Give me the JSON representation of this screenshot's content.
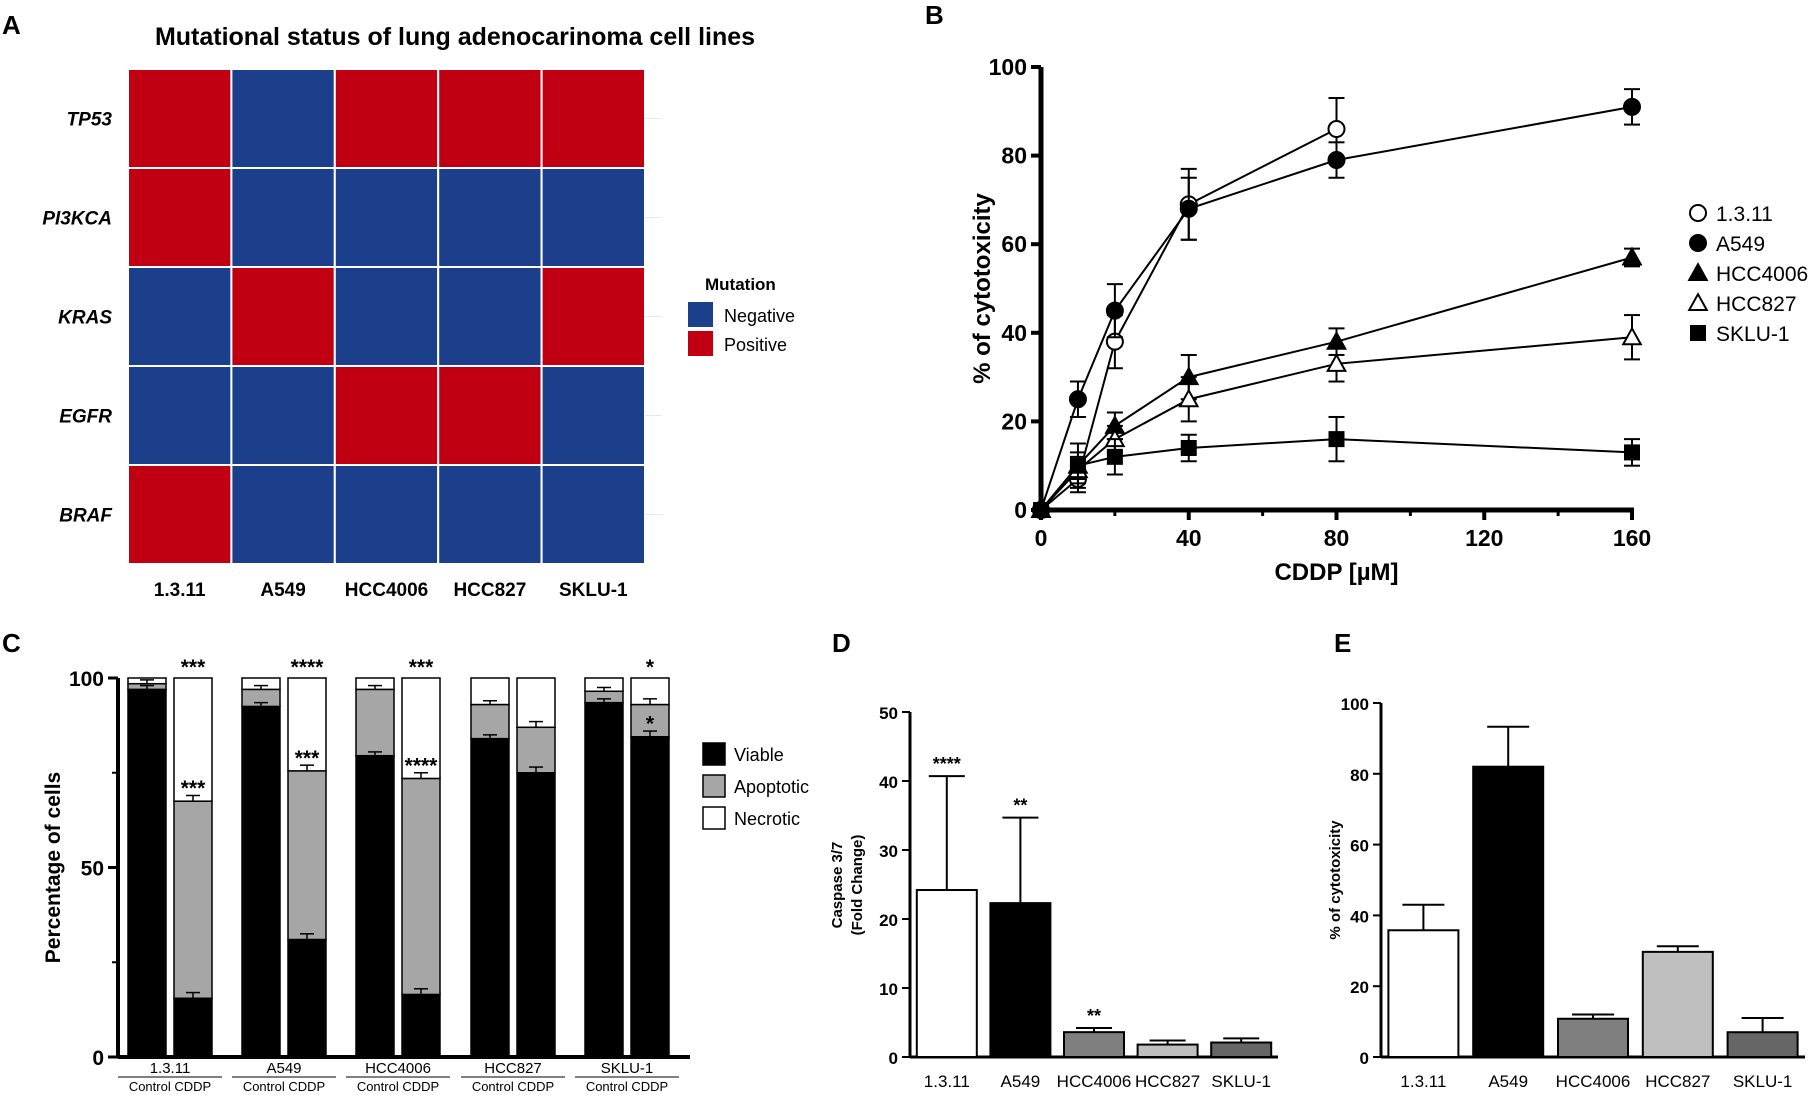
{
  "panel_labels": {
    "A": "A",
    "B": "B",
    "C": "C",
    "D": "D",
    "E": "E"
  },
  "chart_data": [
    {
      "id": "A",
      "type": "heatmap",
      "title": "Mutational status of lung adenocarinoma cell lines",
      "columns": [
        "1.3.11",
        "A549",
        "HCC4006",
        "HCC827",
        "SKLU-1"
      ],
      "rows": [
        "TP53",
        "PI3KCA",
        "KRAS",
        "EGFR",
        "BRAF"
      ],
      "values": [
        [
          1,
          0,
          1,
          1,
          1
        ],
        [
          1,
          0,
          0,
          0,
          0
        ],
        [
          0,
          1,
          0,
          0,
          1
        ],
        [
          0,
          0,
          1,
          1,
          0
        ],
        [
          1,
          0,
          0,
          0,
          0
        ]
      ],
      "legend_title": "Mutation",
      "legend": [
        {
          "label": "Negative",
          "color": "#1c3f8c"
        },
        {
          "label": "Positive",
          "color": "#c00012"
        }
      ]
    },
    {
      "id": "B",
      "type": "line",
      "xlabel": "CDDP  [µM]",
      "ylabel": "% of cytotoxicity",
      "xlim": [
        0,
        160
      ],
      "ylim": [
        0,
        100
      ],
      "xticks": [
        0,
        40,
        80,
        120,
        160
      ],
      "yticks": [
        0,
        20,
        40,
        60,
        80,
        100
      ],
      "series": [
        {
          "name": "1.3.11",
          "marker": "circle-open",
          "x": [
            0,
            10,
            20,
            40,
            80
          ],
          "y": [
            0,
            7,
            38,
            69,
            86
          ],
          "err": [
            0,
            3,
            6,
            8,
            7
          ]
        },
        {
          "name": "A549",
          "marker": "circle-filled",
          "x": [
            0,
            10,
            20,
            40,
            80,
            160
          ],
          "y": [
            0,
            25,
            45,
            68,
            79,
            91
          ],
          "err": [
            0,
            4,
            6,
            7,
            4,
            4
          ]
        },
        {
          "name": "HCC4006",
          "marker": "triangle-filled",
          "x": [
            0,
            10,
            20,
            40,
            80,
            160
          ],
          "y": [
            0,
            10,
            19,
            30,
            38,
            57
          ],
          "err": [
            0,
            3,
            3,
            5,
            3,
            2
          ]
        },
        {
          "name": "HCC827",
          "marker": "triangle-open",
          "x": [
            0,
            10,
            20,
            40,
            80,
            160
          ],
          "y": [
            0,
            9,
            16,
            25,
            33,
            39
          ],
          "err": [
            0,
            3,
            3,
            5,
            4,
            5
          ]
        },
        {
          "name": "SKLU-1",
          "marker": "square-filled",
          "x": [
            0,
            10,
            20,
            40,
            80,
            160
          ],
          "y": [
            0,
            10,
            12,
            14,
            16,
            13
          ],
          "err": [
            0,
            5,
            4,
            3,
            5,
            3
          ]
        }
      ]
    },
    {
      "id": "C",
      "type": "bar",
      "stacked": true,
      "ylabel": "Percentage of cells",
      "ylim": [
        0,
        100
      ],
      "yticks": [
        0,
        50,
        100
      ],
      "groups": [
        "1.3.11",
        "A549",
        "HCC4006",
        "HCC827",
        "SKLU-1"
      ],
      "conditions": [
        "Control",
        "CDDP"
      ],
      "condition_label": "Control CDDP",
      "legend": [
        {
          "label": "Viable",
          "color": "#000000"
        },
        {
          "label": "Apoptotic",
          "color": "#a6a6a6"
        },
        {
          "label": "Necrotic",
          "color": "#ffffff"
        }
      ],
      "bars": [
        {
          "group": "1.3.11",
          "condition": "Control",
          "viable": 97,
          "apoptotic": 1.5,
          "necrotic": 1.5,
          "sig_viable": "",
          "sig_apoptotic": "",
          "sig_top": ""
        },
        {
          "group": "1.3.11",
          "condition": "CDDP",
          "viable": 15.5,
          "apoptotic": 52,
          "necrotic": 32.5,
          "sig_viable": "",
          "sig_apoptotic": "***",
          "sig_top": "***"
        },
        {
          "group": "A549",
          "condition": "Control",
          "viable": 92.5,
          "apoptotic": 4.5,
          "necrotic": 3,
          "sig_viable": "",
          "sig_apoptotic": "",
          "sig_top": ""
        },
        {
          "group": "A549",
          "condition": "CDDP",
          "viable": 31,
          "apoptotic": 44.5,
          "necrotic": 24.5,
          "sig_viable": "",
          "sig_apoptotic": "***",
          "sig_top": "****"
        },
        {
          "group": "HCC4006",
          "condition": "Control",
          "viable": 79.5,
          "apoptotic": 17.5,
          "necrotic": 3,
          "sig_viable": "",
          "sig_apoptotic": "",
          "sig_top": ""
        },
        {
          "group": "HCC4006",
          "condition": "CDDP",
          "viable": 16.5,
          "apoptotic": 57,
          "necrotic": 26.5,
          "sig_viable": "",
          "sig_apoptotic": "****",
          "sig_top": "***"
        },
        {
          "group": "HCC827",
          "condition": "Control",
          "viable": 84,
          "apoptotic": 9,
          "necrotic": 7,
          "sig_viable": "",
          "sig_apoptotic": "",
          "sig_top": ""
        },
        {
          "group": "HCC827",
          "condition": "CDDP",
          "viable": 75,
          "apoptotic": 12,
          "necrotic": 13,
          "sig_viable": "",
          "sig_apoptotic": "",
          "sig_top": ""
        },
        {
          "group": "SKLU-1",
          "condition": "Control",
          "viable": 93.5,
          "apoptotic": 3,
          "necrotic": 3.5,
          "sig_viable": "",
          "sig_apoptotic": "",
          "sig_top": ""
        },
        {
          "group": "SKLU-1",
          "condition": "CDDP",
          "viable": 84.5,
          "apoptotic": 8.5,
          "necrotic": 7,
          "sig_viable": "*",
          "sig_apoptotic": "",
          "sig_top": "*"
        }
      ]
    },
    {
      "id": "D",
      "type": "bar",
      "ylabel_line1": "Caspase 3/7",
      "ylabel_line2": "(Fold Change)",
      "ylim": [
        0,
        50
      ],
      "yticks": [
        0,
        10,
        20,
        30,
        40,
        50
      ],
      "categories": [
        "1.3.11",
        "A549",
        "HCC4006",
        "HCC827",
        "SKLU-1"
      ],
      "values": [
        24.2,
        22.3,
        3.6,
        1.8,
        2.1
      ],
      "errors": [
        16.5,
        12.4,
        0.6,
        0.6,
        0.6
      ],
      "significance": [
        "****",
        "**",
        "**",
        "",
        ""
      ],
      "colors": [
        "#ffffff",
        "#000000",
        "#7f7f7f",
        "#bfbfbf",
        "#666666"
      ]
    },
    {
      "id": "E",
      "type": "bar",
      "ylabel": "% of cytotoxicity",
      "ylim": [
        0,
        100
      ],
      "yticks": [
        0,
        20,
        40,
        60,
        80,
        100
      ],
      "categories": [
        "1.3.11",
        "A549",
        "HCC4006",
        "HCC827",
        "SKLU-1"
      ],
      "values": [
        35.8,
        82,
        10.8,
        29.7,
        7
      ],
      "errors": [
        7.2,
        11.3,
        1.2,
        1.6,
        4
      ],
      "colors": [
        "#ffffff",
        "#000000",
        "#7f7f7f",
        "#bfbfbf",
        "#666666"
      ]
    }
  ]
}
